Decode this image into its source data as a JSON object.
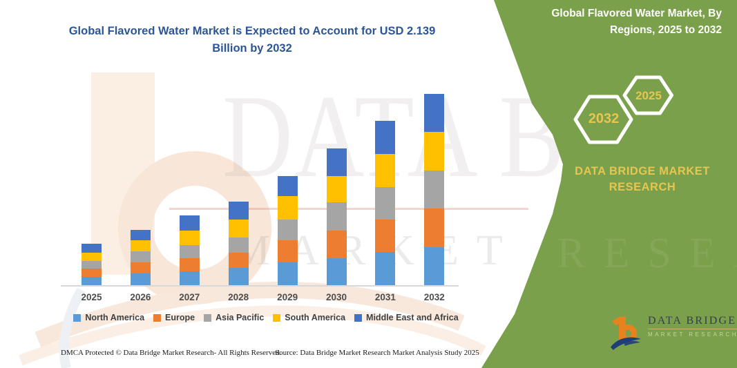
{
  "header": {
    "title": "Global Flavored Water Market is Expected to Account for USD 2.139 Billion by 2032",
    "title_color": "#2B5596"
  },
  "side_panel": {
    "heading_line1": "Global Flavored Water Market, By",
    "heading_line2": "Regions, 2025 to 2032",
    "hexagon_badges": [
      {
        "label": "2032"
      },
      {
        "label": "2025"
      }
    ],
    "brand_line1": "DATA BRIDGE MARKET",
    "brand_line2": "RESEARCH",
    "colors": {
      "background": "#7AA04B",
      "accent_gold": "#E6C650",
      "text": "#FFFFFF"
    }
  },
  "chart_data": {
    "type": "bar",
    "stacked": true,
    "categories": [
      "2025",
      "2026",
      "2027",
      "2028",
      "2029",
      "2030",
      "2031",
      "2032"
    ],
    "series": [
      {
        "name": "North America",
        "color": "#5B9BD5",
        "values": [
          12,
          17,
          20,
          25,
          33,
          39,
          48,
          55
        ]
      },
      {
        "name": "Europe",
        "color": "#ED7D31",
        "values": [
          12,
          16,
          19,
          22,
          32,
          40,
          47,
          56
        ]
      },
      {
        "name": "Asia Pacific",
        "color": "#A5A5A5",
        "values": [
          11,
          16,
          19,
          22,
          30,
          41,
          47,
          55
        ]
      },
      {
        "name": "South America",
        "color": "#FFC000",
        "values": [
          12,
          16,
          21,
          26,
          34,
          38,
          48,
          56
        ]
      },
      {
        "name": "Middle East and Africa",
        "color": "#4472C4",
        "values": [
          13,
          15,
          22,
          26,
          29,
          40,
          48,
          55
        ]
      }
    ],
    "totals": [
      60,
      80,
      101,
      121,
      158,
      198,
      238,
      277
    ],
    "units": "relative bar-segment heights (px); figure shows no value axis",
    "annotation": "Caption states the market is expected to account for USD 2.139 billion by 2032",
    "xlabel": "",
    "ylabel": "",
    "value_axis_visible": false,
    "gridlines": false,
    "legend_position": "bottom"
  },
  "watermark": {
    "line1": "DATA BRIDGE",
    "line2": "MARKET RESEARCH"
  },
  "logo": {
    "line1": "DATA BRIDGE",
    "line2": "MARKET RESEARCH"
  },
  "footer": {
    "dmca": "DMCA Protected © Data Bridge Market Research-  All Rights Reserved.",
    "source": "Source: Data Bridge Market Research  Market Analysis Study 2025"
  }
}
